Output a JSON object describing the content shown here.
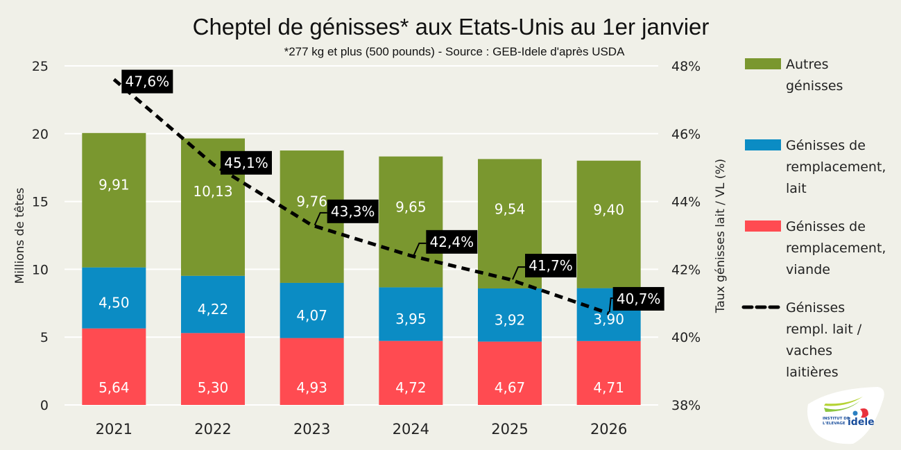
{
  "chart_data": {
    "type": "bar",
    "stacked": true,
    "title": "Cheptel de génisses* aux Etats-Unis au 1er janvier",
    "subtitle": "*277 kg et plus (500 pounds) - Source : GEB-Idele d'après USDA",
    "categories": [
      "2021",
      "2022",
      "2023",
      "2024",
      "2025",
      "2026"
    ],
    "ylabel": "Millions de têtes",
    "ylim": [
      0,
      25
    ],
    "yticks": [
      0,
      5,
      10,
      15,
      20,
      25
    ],
    "ytick_labels": [
      "0",
      "5",
      "10",
      "15",
      "20",
      "25"
    ],
    "y2label": "Taux génisses lait  / VL (%)",
    "y2lim": [
      38,
      48
    ],
    "y2ticks": [
      38,
      40,
      42,
      44,
      46,
      48
    ],
    "y2tick_labels": [
      "38%",
      "40%",
      "42%",
      "44%",
      "46%",
      "48%"
    ],
    "grid": true,
    "legend_position": "right",
    "series": [
      {
        "name": "Génisses de remplacement, viande",
        "legend_lines": [
          "Génisses de",
          "remplacement,",
          "viande"
        ],
        "color": "#ff4b51",
        "type": "bar",
        "values": [
          5.64,
          5.3,
          4.93,
          4.72,
          4.67,
          4.71
        ],
        "labels": [
          "5,64",
          "5,30",
          "4,93",
          "4,72",
          "4,67",
          "4,71"
        ]
      },
      {
        "name": "Génisses de remplacement, lait",
        "legend_lines": [
          "Génisses de",
          "remplacement,",
          "lait"
        ],
        "color": "#0b8cc4",
        "type": "bar",
        "values": [
          4.5,
          4.22,
          4.07,
          3.95,
          3.92,
          3.9
        ],
        "labels": [
          "4,50",
          "4,22",
          "4,07",
          "3,95",
          "3,92",
          "3,90"
        ]
      },
      {
        "name": "Autres génisses",
        "legend_lines": [
          "Autres",
          "génisses"
        ],
        "color": "#7a972f",
        "type": "bar",
        "values": [
          9.91,
          10.13,
          9.76,
          9.65,
          9.54,
          9.4
        ],
        "labels": [
          "9,91",
          "10,13",
          "9,76",
          "9,65",
          "9,54",
          "9,40"
        ]
      },
      {
        "name": "Génisses rempl. lait / vaches laitières",
        "legend_lines": [
          "Génisses",
          "rempl. lait /",
          "vaches",
          "laitières"
        ],
        "color": "#000000",
        "type": "line",
        "dashed": true,
        "axis": "right",
        "values": [
          47.6,
          45.1,
          43.3,
          42.4,
          41.7,
          40.7
        ],
        "labels": [
          "47,6%",
          "45,1%",
          "43,3%",
          "42,4%",
          "41,7%",
          "40,7%"
        ]
      }
    ]
  },
  "colors": {
    "background": "#f0f0e8",
    "gridline": "#ffffff",
    "label_box": "#000000"
  },
  "logo": {
    "line1": "INSTITUT DE",
    "line2": "L'ELEVAGE",
    "brand": "idele"
  }
}
